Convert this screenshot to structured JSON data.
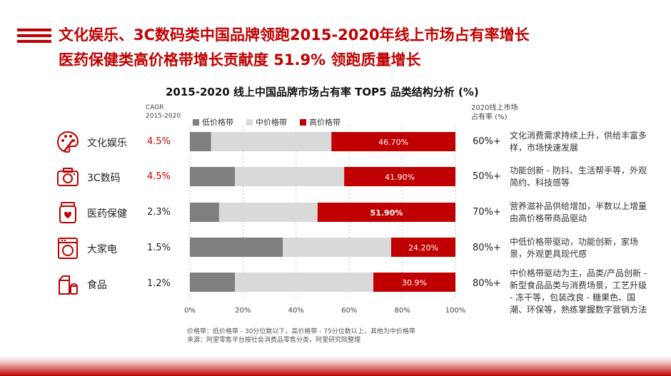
{
  "title_line1": "文化娱乐、3C数码类中国品牌领跑2015-2020年线上市场占有率增长",
  "title_line2": "医药保健类高价格带增长贡献度 51.9% 领跑质量增长",
  "subtitle": "2015-2020 线上中国品牌市场占有率 TOP5 品类结构分析 (%)",
  "cagr_header": "CAGR\n2015-2020",
  "share_header": "2020线上市场\n占有率 (%)",
  "legend": [
    "低价格带",
    "中价格带",
    "高价格带"
  ],
  "colors": {
    "low": "#7f7f7f",
    "mid": "#d9d9d9",
    "high": "#c00000",
    "accent": "#c00000"
  },
  "categories": [
    {
      "name": "文化娱乐",
      "icon": "palette-icon",
      "cagr": "4.5%",
      "cagr_highlight": true,
      "share": "60%+",
      "desc": "文化消费需求持续上升，供给丰富多样，市场快速发展"
    },
    {
      "name": "3C数码",
      "icon": "camera-icon",
      "cagr": "4.5%",
      "cagr_highlight": true,
      "share": "50%+",
      "desc": "功能创新 - 防抖、生活帮手等，外观简约、科技感等"
    },
    {
      "name": "医药保健",
      "icon": "pill-bottle-icon",
      "cagr": "2.3%",
      "cagr_highlight": false,
      "share": "70%+",
      "desc": "营养滋补品供给增加，半数以上增量由高价格带商品驱动"
    },
    {
      "name": "大家电",
      "icon": "washing-machine-icon",
      "cagr": "1.5%",
      "cagr_highlight": false,
      "share": "80%+",
      "desc": "中低价格带驱动，功能创新，家场景，外观更具现代感"
    },
    {
      "name": "食品",
      "icon": "food-icon",
      "cagr": "1.2%",
      "cagr_highlight": false,
      "share": "80%+",
      "desc": "中价格带驱动为主，品类/产品创新 - 新型食品品类与消费场景，工艺升级 - 冻干等，包装改良 - 糖果色、国潮、环保等，熟练掌握数字营销方法"
    }
  ],
  "chart_data": {
    "type": "bar",
    "orientation": "horizontal",
    "stacked": true,
    "categories": [
      "文化娱乐",
      "3C数码",
      "医药保健",
      "大家电",
      "食品"
    ],
    "series": [
      {
        "name": "低价格带",
        "values": [
          8,
          17,
          11,
          35,
          17
        ]
      },
      {
        "name": "中价格带",
        "values": [
          45.3,
          41.1,
          37.1,
          40.8,
          52.1
        ]
      },
      {
        "name": "高价格带",
        "values": [
          46.7,
          41.9,
          51.9,
          24.2,
          30.9
        ]
      }
    ],
    "data_labels": [
      "46.70%",
      "41.90%",
      "51.90%",
      "24.20%",
      "30.9%"
    ],
    "xlim": [
      0,
      100
    ],
    "x_ticks": [
      "0%",
      "20%",
      "40%",
      "60%",
      "80%",
      "100%"
    ],
    "grid": true,
    "legend_position": "top"
  },
  "footnote": "价格带：低价格带 - 30分位数以下，高价格带 - 75分位数以上，其他为中价格带\n来源：阿里零售平台按社会消费品零售分类，阿里研究院整理"
}
